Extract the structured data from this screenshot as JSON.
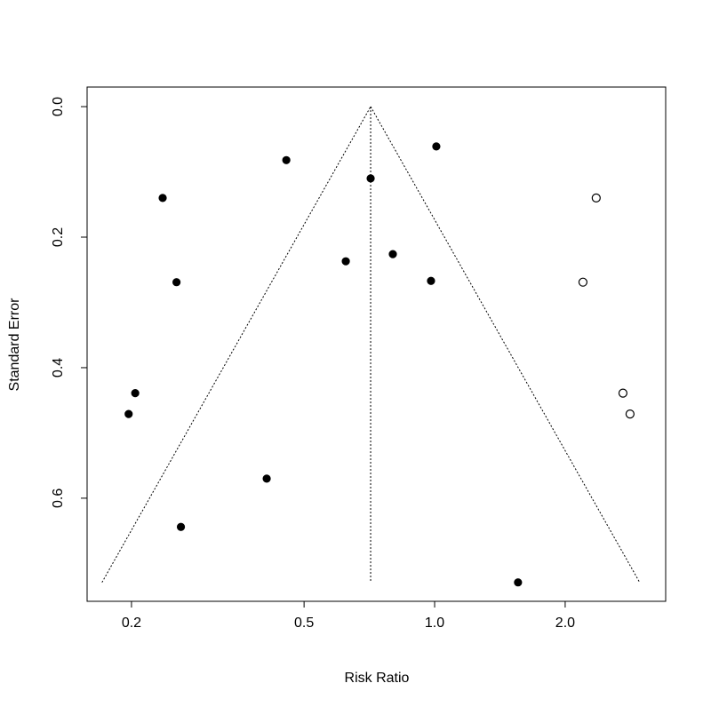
{
  "chart_data": {
    "type": "funnel",
    "xlabel": "Risk Ratio",
    "ylabel": "Standard Error",
    "xscale": "log",
    "y_reversed": true,
    "xlim": [
      0.158,
      3.41
    ],
    "ylim": [
      -0.03,
      0.758
    ],
    "xticks": [
      0.2,
      0.5,
      {
        "value": 1.0,
        "label": "1.0"
      },
      {
        "value": 2.0,
        "label": "2.0"
      }
    ],
    "yticks": [
      {
        "value": 0,
        "label": "0.0"
      },
      0.2,
      0.4,
      0.6
    ],
    "series": [
      {
        "marker": "filled",
        "color": "#000000",
        "x": [
          0.455,
          1.009,
          0.712,
          0.236,
          0.624,
          0.801,
          0.981,
          0.254,
          0.204,
          0.197,
          0.41,
          0.26,
          1.557
        ],
        "values": [
          0.082,
          0.061,
          0.11,
          0.14,
          0.237,
          0.226,
          0.267,
          0.269,
          0.439,
          0.471,
          0.57,
          0.644,
          0.729
        ]
      },
      {
        "marker": "open",
        "color": "#000000",
        "x": [
          2.358,
          2.198,
          2.718,
          2.822
        ],
        "values": [
          0.14,
          0.269,
          0.439,
          0.471
        ]
      }
    ],
    "lines": [
      {
        "x": [
          0.171,
          0.712
        ],
        "values": [
          0.729,
          0
        ]
      },
      {
        "x": [
          0.712,
          0.712
        ],
        "values": [
          0,
          0.729
        ]
      },
      {
        "x": [
          0.712,
          2.97
        ],
        "values": [
          0,
          0.729
        ]
      }
    ]
  }
}
